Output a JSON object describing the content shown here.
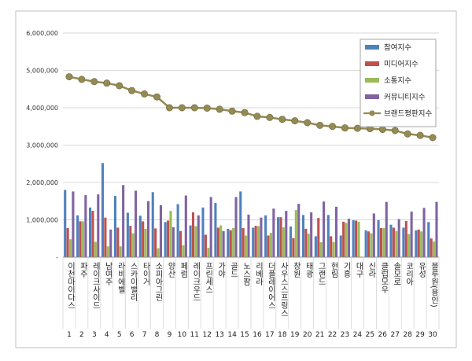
{
  "chart_data": {
    "type": "bar",
    "title": "",
    "xlabel": "",
    "ylabel": "",
    "ylim": [
      0,
      6000000
    ],
    "ytick_values": [
      0,
      1000000,
      2000000,
      3000000,
      4000000,
      5000000,
      6000000
    ],
    "ytick_labels": [
      "-",
      "1,000,000",
      "2,000,000",
      "3,000,000",
      "4,000,000",
      "5,000,000",
      "6,000,000"
    ],
    "grid": true,
    "legend_position": "top-right",
    "categories": [
      "이천마이다스",
      "파주",
      "레이크사이드",
      "남여주",
      "라비에벨",
      "스카이밸리",
      "타이거",
      "소피아그린",
      "양산",
      "페럼",
      "레이크우드",
      "프린세스",
      "가야",
      "골드",
      "노스팜",
      "리베라",
      "더플레이어스",
      "사우스스프링스",
      "창원",
      "태광",
      "그랜드",
      "현림",
      "기흥",
      "대구",
      "신라",
      "클럽모우",
      "솔모로",
      "코리아",
      "유성",
      "블루원(용인)"
    ],
    "ranks": [
      "1",
      "2",
      "3",
      "4",
      "5",
      "6",
      "7",
      "8",
      "9",
      "10",
      "11",
      "12",
      "13",
      "14",
      "15",
      "16",
      "17",
      "18",
      "19",
      "20",
      "21",
      "22",
      "23",
      "24",
      "25",
      "26",
      "27",
      "28",
      "29",
      "30"
    ],
    "series": [
      {
        "name": "참여지수",
        "kind": "bar",
        "color": "#4f81bd",
        "values": [
          1800000,
          1120000,
          1330000,
          2520000,
          1640000,
          1190000,
          1110000,
          1740000,
          940000,
          1420000,
          850000,
          1330000,
          1450000,
          760000,
          1760000,
          790000,
          1120000,
          1070000,
          820000,
          1130000,
          560000,
          1130000,
          580000,
          990000,
          720000,
          990000,
          870000,
          790000,
          720000,
          940000
        ]
      },
      {
        "name": "미디어지수",
        "kind": "bar",
        "color": "#c0504d",
        "values": [
          780000,
          960000,
          1240000,
          1060000,
          790000,
          840000,
          960000,
          770000,
          980000,
          700000,
          1200000,
          600000,
          790000,
          720000,
          780000,
          840000,
          580000,
          1070000,
          510000,
          760000,
          1050000,
          560000,
          950000,
          980000,
          690000,
          780000,
          790000,
          970000,
          740000,
          500000
        ]
      },
      {
        "name": "소통지수",
        "kind": "bar",
        "color": "#9bbb59",
        "values": [
          480000,
          960000,
          410000,
          290000,
          290000,
          640000,
          760000,
          240000,
          1240000,
          320000,
          830000,
          250000,
          850000,
          780000,
          580000,
          830000,
          650000,
          800000,
          1260000,
          630000,
          400000,
          410000,
          920000,
          950000,
          640000,
          780000,
          700000,
          620000,
          690000,
          420000
        ]
      },
      {
        "name": "커뮤니티지수",
        "kind": "bar",
        "color": "#8064a2",
        "values": [
          1760000,
          1660000,
          1680000,
          740000,
          1930000,
          1780000,
          1500000,
          1390000,
          800000,
          1650000,
          1120000,
          1610000,
          700000,
          1610000,
          1140000,
          1060000,
          1300000,
          1240000,
          1430000,
          1200000,
          1490000,
          1350000,
          1030000,
          0,
          1170000,
          1480000,
          1020000,
          1220000,
          1320000,
          1480000
        ]
      },
      {
        "name": "브랜드평판지수",
        "kind": "line",
        "color": "#948a54",
        "values": [
          4830000,
          4760000,
          4700000,
          4660000,
          4590000,
          4460000,
          4370000,
          4290000,
          4000000,
          4000000,
          4000000,
          3990000,
          3960000,
          3910000,
          3870000,
          3770000,
          3740000,
          3690000,
          3650000,
          3600000,
          3530000,
          3500000,
          3460000,
          3450000,
          3440000,
          3420000,
          3390000,
          3300000,
          3260000,
          3200000
        ]
      }
    ]
  }
}
